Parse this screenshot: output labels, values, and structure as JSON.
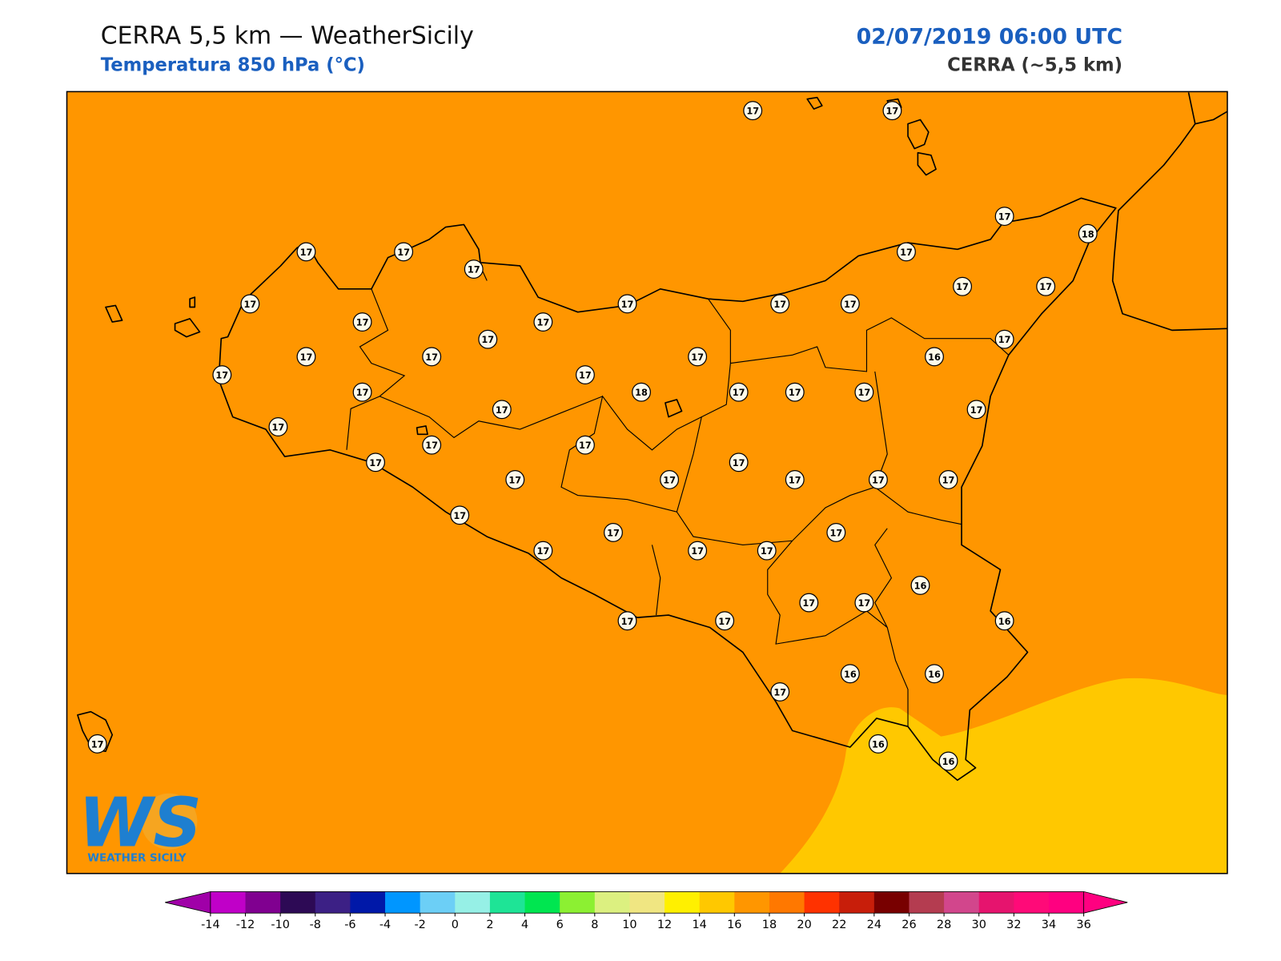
{
  "header": {
    "title": "CERRA 5,5 km — WeatherSicily",
    "subtitle": "Temperatura 850 hPa (°C)",
    "datetime": "02/07/2019 06:00 UTC",
    "model": "CERRA (~5,5 km)"
  },
  "stations": [
    17,
    17,
    17,
    18,
    17,
    17,
    17,
    17,
    17,
    17,
    17,
    17,
    17,
    17,
    17,
    17,
    17,
    17,
    17,
    17,
    17,
    16,
    17,
    17,
    17,
    18,
    17,
    17,
    17,
    17,
    17,
    17,
    17,
    17,
    17,
    17,
    17,
    17,
    17,
    17,
    17,
    17,
    17,
    17,
    17,
    17,
    17,
    16,
    17,
    17,
    17,
    17,
    16,
    16,
    16,
    17,
    17,
    16,
    16
  ],
  "colorbar": {
    "ticks": [
      -14,
      -12,
      -10,
      -8,
      -6,
      -4,
      -2,
      0,
      2,
      4,
      6,
      8,
      10,
      12,
      14,
      16,
      18,
      20,
      22,
      24,
      26,
      28,
      30,
      32,
      34,
      36
    ],
    "under": "#a000a8",
    "over": "#ff0080",
    "colors": [
      "#c000c8",
      "#800090",
      "#2d0a55",
      "#3c2085",
      "#0018a8",
      "#0096ff",
      "#6ccff6",
      "#96f0e6",
      "#1ee496",
      "#00e650",
      "#8cf032",
      "#dcf080",
      "#f0e682",
      "#fff000",
      "#ffc800",
      "#ff9600",
      "#ff7800",
      "#ff3200",
      "#c81e0a",
      "#780000",
      "#b43c50",
      "#d2468c",
      "#e6146e",
      "#ff0a78",
      "#ff0080"
    ]
  },
  "logo": {
    "text": "WS",
    "subtitle": "WEATHER SICILY"
  }
}
